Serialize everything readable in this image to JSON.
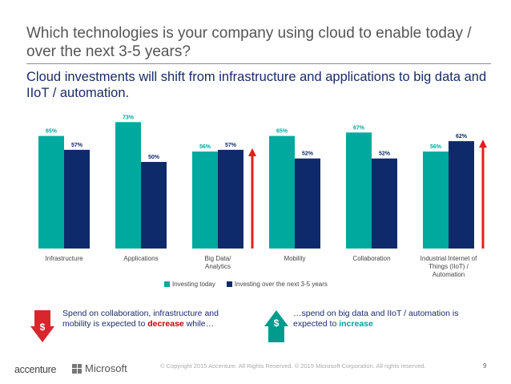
{
  "title": "Which technologies is your company using cloud to enable today / over the next 3-5 years?",
  "subtitle": "Cloud investments will shift from infrastructure and applications to big data and IIoT / automation.",
  "colors": {
    "today": "#00a99d",
    "future": "#0e2a6a",
    "arrow": "#e0201b",
    "callout_down": "#d9262d",
    "callout_up": "#009b8d"
  },
  "chart_data": {
    "type": "bar",
    "categories": [
      "Infrastructure",
      "Applications",
      "Big Data/ Analytics",
      "Mobility",
      "Collaboration",
      "Industrial Internet of Things (IIoT) / Automation"
    ],
    "series": [
      {
        "name": "Investing today",
        "values": [
          65,
          73,
          56,
          65,
          67,
          56
        ],
        "labels": [
          "65%",
          "73%",
          "56%",
          "65%",
          "67%",
          "56%"
        ]
      },
      {
        "name": "Investing over the next 3-5 years",
        "values": [
          57,
          50,
          57,
          52,
          52,
          62
        ],
        "labels": [
          "57%",
          "50%",
          "57%",
          "52%",
          "52%",
          "62%"
        ]
      }
    ],
    "ylim": [
      0,
      75
    ],
    "growth_arrows_on": [
      "Big Data/ Analytics",
      "Industrial Internet of Things (IIoT) / Automation"
    ],
    "legend_position": "bottom"
  },
  "callouts": {
    "left": {
      "pre": "Spend on collaboration, infrastructure and mobility is expected to ",
      "emphasis": "decrease",
      "post": " while…",
      "icon": "$"
    },
    "right": {
      "pre": "…spend on big data and IIoT / automation is expected to ",
      "emphasis": "increase",
      "post": "",
      "icon": "$"
    }
  },
  "footer": {
    "copyright": "© Copyright 2015 Accenture. All Rights Reserved. © 2015 Microsoft Corporation. All rights reserved.",
    "page": "9",
    "logo_accenture": "accenture",
    "logo_microsoft": "Microsoft"
  }
}
